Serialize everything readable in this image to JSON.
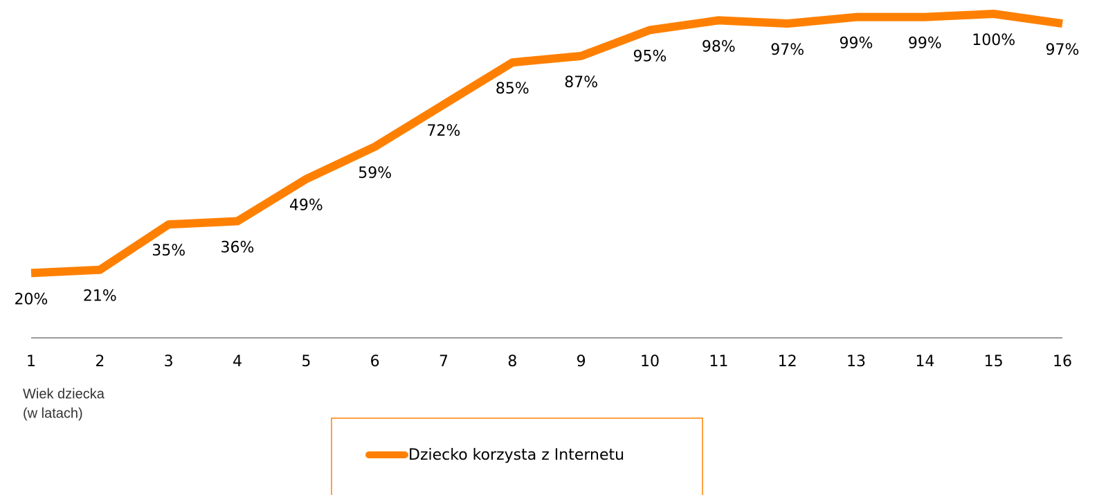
{
  "chart_data": {
    "type": "line",
    "categories": [
      "1",
      "2",
      "3",
      "4",
      "5",
      "6",
      "7",
      "8",
      "9",
      "10",
      "11",
      "12",
      "13",
      "14",
      "15",
      "16"
    ],
    "x_label": [
      "Wiek dziecka",
      "(w latach)"
    ],
    "series": [
      {
        "name": "Dziecko korzysta z Internetu",
        "color": "#ff8000",
        "values": [
          20,
          21,
          35,
          36,
          49,
          59,
          72,
          85,
          87,
          95,
          98,
          97,
          99,
          99,
          100,
          97
        ],
        "value_labels": [
          "20%",
          "21%",
          "35%",
          "36%",
          "49%",
          "59%",
          "72%",
          "85%",
          "87%",
          "95%",
          "98%",
          "97%",
          "99%",
          "99%",
          "100%",
          "97%"
        ]
      }
    ],
    "ylim": [
      0,
      100
    ],
    "legend": "bottom"
  }
}
